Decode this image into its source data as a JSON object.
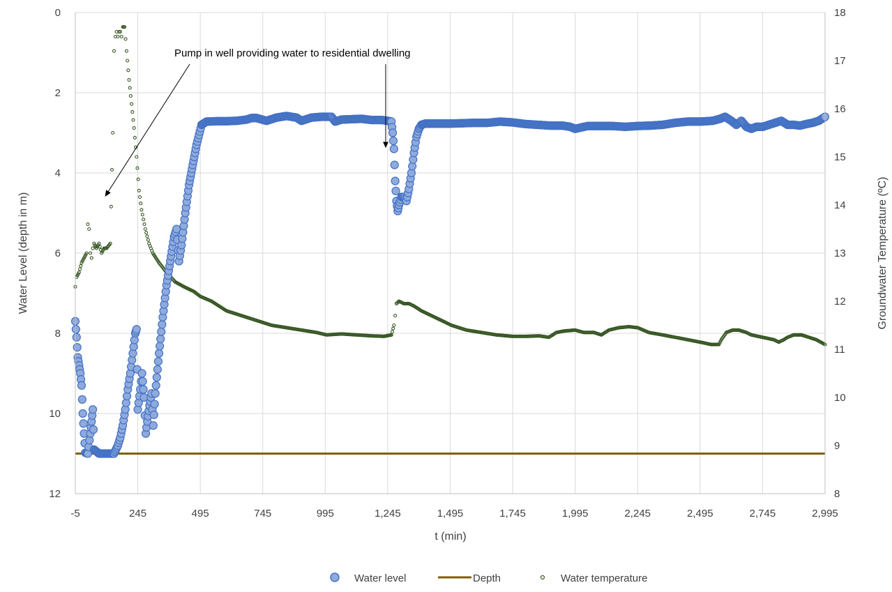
{
  "chart_data": {
    "type": "scatter",
    "xlabel": "t (min)",
    "ylabel_left": "Water Level (depth in m)",
    "ylabel_right": "Groundwater Temperature (ºC)",
    "x_range": [
      -5,
      2995
    ],
    "x_ticks": [
      -5,
      245,
      495,
      745,
      995,
      1245,
      1495,
      1745,
      1995,
      2245,
      2495,
      2745,
      2995
    ],
    "x_tick_labels": [
      "-5",
      "245",
      "495",
      "745",
      "995",
      "1,245",
      "1,495",
      "1,745",
      "1,995",
      "2,245",
      "2,495",
      "2,745",
      "2,995"
    ],
    "y_left_range": [
      0,
      12
    ],
    "y_left_inverted": true,
    "y_left_ticks": [
      0,
      2,
      4,
      6,
      8,
      10,
      12
    ],
    "y_right_range": [
      8,
      18
    ],
    "y_right_ticks": [
      8,
      9,
      10,
      11,
      12,
      13,
      14,
      15,
      16,
      17,
      18
    ],
    "grid": true,
    "legend_position": "bottom",
    "annotation": {
      "text": "Pump in well providing water to residential dwelling",
      "arrow_targets": [
        [
          255,
          14.1
        ],
        [
          1290,
          3.5
        ]
      ]
    },
    "series": [
      {
        "name": "Water level",
        "axis": "left",
        "kind": "scatter",
        "color": "#4472C4",
        "fill": "#8FAADC",
        "points": [
          [
            -5,
            7.7
          ],
          [
            0,
            8.1
          ],
          [
            5,
            8.6
          ],
          [
            10,
            8.8
          ],
          [
            15,
            9.0
          ],
          [
            20,
            9.3
          ],
          [
            25,
            10.0
          ],
          [
            30,
            10.5
          ],
          [
            35,
            10.98
          ],
          [
            45,
            11.0
          ],
          [
            55,
            10.5
          ],
          [
            60,
            10.2
          ],
          [
            65,
            9.9
          ],
          [
            70,
            10.9
          ],
          [
            90,
            11.0
          ],
          [
            110,
            11.0
          ],
          [
            130,
            11.0
          ],
          [
            150,
            11.0
          ],
          [
            165,
            10.8
          ],
          [
            175,
            10.6
          ],
          [
            185,
            10.3
          ],
          [
            195,
            9.9
          ],
          [
            205,
            9.4
          ],
          [
            215,
            9.0
          ],
          [
            225,
            8.5
          ],
          [
            235,
            8.0
          ],
          [
            240,
            7.9
          ],
          [
            245,
            9.9
          ],
          [
            255,
            9.4
          ],
          [
            262,
            9.0
          ],
          [
            270,
            9.6
          ],
          [
            277,
            10.5
          ],
          [
            283,
            10.2
          ],
          [
            292,
            9.8
          ],
          [
            300,
            9.5
          ],
          [
            307,
            10.3
          ],
          [
            315,
            9.5
          ],
          [
            330,
            8.5
          ],
          [
            345,
            7.6
          ],
          [
            360,
            6.8
          ],
          [
            375,
            6.2
          ],
          [
            390,
            5.6
          ],
          [
            400,
            5.4
          ],
          [
            410,
            6.2
          ],
          [
            420,
            5.8
          ],
          [
            435,
            5.0
          ],
          [
            450,
            4.3
          ],
          [
            465,
            3.8
          ],
          [
            480,
            3.3
          ],
          [
            490,
            3.05
          ],
          [
            500,
            2.8
          ],
          [
            520,
            2.72
          ],
          [
            560,
            2.71
          ],
          [
            600,
            2.71
          ],
          [
            640,
            2.7
          ],
          [
            680,
            2.67
          ],
          [
            700,
            2.63
          ],
          [
            720,
            2.63
          ],
          [
            760,
            2.7
          ],
          [
            800,
            2.62
          ],
          [
            840,
            2.58
          ],
          [
            880,
            2.62
          ],
          [
            900,
            2.7
          ],
          [
            940,
            2.62
          ],
          [
            980,
            2.6
          ],
          [
            1020,
            2.6
          ],
          [
            1035,
            2.72
          ],
          [
            1060,
            2.67
          ],
          [
            1100,
            2.66
          ],
          [
            1140,
            2.65
          ],
          [
            1180,
            2.68
          ],
          [
            1220,
            2.68
          ],
          [
            1245,
            2.7
          ],
          [
            1260,
            2.72
          ],
          [
            1265,
            3.0
          ],
          [
            1270,
            3.4
          ],
          [
            1275,
            4.2
          ],
          [
            1280,
            4.7
          ],
          [
            1285,
            4.95
          ],
          [
            1290,
            4.8
          ],
          [
            1300,
            4.6
          ],
          [
            1310,
            4.6
          ],
          [
            1320,
            4.7
          ],
          [
            1330,
            4.4
          ],
          [
            1340,
            4.0
          ],
          [
            1350,
            3.5
          ],
          [
            1360,
            3.1
          ],
          [
            1370,
            2.9
          ],
          [
            1380,
            2.8
          ],
          [
            1395,
            2.77
          ],
          [
            1445,
            2.77
          ],
          [
            1495,
            2.77
          ],
          [
            1545,
            2.76
          ],
          [
            1595,
            2.75
          ],
          [
            1645,
            2.75
          ],
          [
            1695,
            2.72
          ],
          [
            1745,
            2.74
          ],
          [
            1795,
            2.78
          ],
          [
            1845,
            2.8
          ],
          [
            1895,
            2.82
          ],
          [
            1945,
            2.82
          ],
          [
            1975,
            2.85
          ],
          [
            1995,
            2.9
          ],
          [
            2045,
            2.83
          ],
          [
            2095,
            2.83
          ],
          [
            2145,
            2.83
          ],
          [
            2195,
            2.85
          ],
          [
            2245,
            2.83
          ],
          [
            2295,
            2.82
          ],
          [
            2345,
            2.8
          ],
          [
            2395,
            2.75
          ],
          [
            2445,
            2.72
          ],
          [
            2495,
            2.72
          ],
          [
            2545,
            2.7
          ],
          [
            2575,
            2.65
          ],
          [
            2595,
            2.6
          ],
          [
            2620,
            2.7
          ],
          [
            2640,
            2.8
          ],
          [
            2660,
            2.7
          ],
          [
            2680,
            2.85
          ],
          [
            2700,
            2.9
          ],
          [
            2720,
            2.85
          ],
          [
            2745,
            2.85
          ],
          [
            2795,
            2.75
          ],
          [
            2820,
            2.7
          ],
          [
            2845,
            2.8
          ],
          [
            2870,
            2.8
          ],
          [
            2895,
            2.82
          ],
          [
            2920,
            2.78
          ],
          [
            2945,
            2.75
          ],
          [
            2970,
            2.7
          ],
          [
            2995,
            2.6
          ]
        ]
      },
      {
        "name": "Depth",
        "axis": "left",
        "kind": "line",
        "color": "#7F6000",
        "points": [
          [
            -5,
            11.0
          ],
          [
            2995,
            11.0
          ]
        ]
      },
      {
        "name": "Water temperature",
        "axis": "right",
        "kind": "scatter",
        "color": "#375623",
        "points": [
          [
            -5,
            12.3
          ],
          [
            0,
            12.5
          ],
          [
            10,
            12.6
          ],
          [
            20,
            12.8
          ],
          [
            30,
            12.9
          ],
          [
            40,
            13.0
          ],
          [
            45,
            13.6
          ],
          [
            50,
            13.5
          ],
          [
            55,
            13.0
          ],
          [
            60,
            12.9
          ],
          [
            65,
            13.1
          ],
          [
            70,
            13.2
          ],
          [
            80,
            13.1
          ],
          [
            90,
            13.2
          ],
          [
            100,
            13.0
          ],
          [
            110,
            13.1
          ],
          [
            120,
            13.1
          ],
          [
            135,
            13.2
          ],
          [
            145,
            15.5
          ],
          [
            150,
            17.2
          ],
          [
            155,
            17.5
          ],
          [
            160,
            17.6
          ],
          [
            165,
            17.5
          ],
          [
            170,
            17.6
          ],
          [
            175,
            17.6
          ],
          [
            180,
            17.5
          ],
          [
            185,
            17.7
          ],
          [
            192,
            17.7
          ],
          [
            200,
            17.2
          ],
          [
            210,
            16.6
          ],
          [
            220,
            16.1
          ],
          [
            230,
            15.6
          ],
          [
            240,
            15.0
          ],
          [
            250,
            14.3
          ],
          [
            260,
            13.9
          ],
          [
            275,
            13.5
          ],
          [
            290,
            13.2
          ],
          [
            305,
            13.0
          ],
          [
            330,
            12.8
          ],
          [
            360,
            12.6
          ],
          [
            395,
            12.4
          ],
          [
            430,
            12.3
          ],
          [
            470,
            12.2
          ],
          [
            495,
            12.1
          ],
          [
            540,
            12.0
          ],
          [
            600,
            11.8
          ],
          [
            660,
            11.7
          ],
          [
            720,
            11.6
          ],
          [
            780,
            11.5
          ],
          [
            840,
            11.45
          ],
          [
            900,
            11.4
          ],
          [
            960,
            11.35
          ],
          [
            1000,
            11.3
          ],
          [
            1060,
            11.32
          ],
          [
            1120,
            11.3
          ],
          [
            1180,
            11.28
          ],
          [
            1230,
            11.27
          ],
          [
            1260,
            11.3
          ],
          [
            1270,
            11.5
          ],
          [
            1275,
            11.7
          ],
          [
            1280,
            11.95
          ],
          [
            1290,
            12.0
          ],
          [
            1310,
            11.95
          ],
          [
            1330,
            11.95
          ],
          [
            1350,
            11.9
          ],
          [
            1380,
            11.8
          ],
          [
            1420,
            11.7
          ],
          [
            1460,
            11.6
          ],
          [
            1500,
            11.5
          ],
          [
            1560,
            11.4
          ],
          [
            1620,
            11.35
          ],
          [
            1680,
            11.3
          ],
          [
            1745,
            11.27
          ],
          [
            1800,
            11.27
          ],
          [
            1850,
            11.28
          ],
          [
            1890,
            11.25
          ],
          [
            1920,
            11.35
          ],
          [
            1950,
            11.38
          ],
          [
            1995,
            11.4
          ],
          [
            2030,
            11.35
          ],
          [
            2070,
            11.35
          ],
          [
            2100,
            11.3
          ],
          [
            2130,
            11.4
          ],
          [
            2170,
            11.45
          ],
          [
            2210,
            11.47
          ],
          [
            2245,
            11.45
          ],
          [
            2290,
            11.35
          ],
          [
            2345,
            11.3
          ],
          [
            2395,
            11.25
          ],
          [
            2445,
            11.2
          ],
          [
            2495,
            11.15
          ],
          [
            2540,
            11.1
          ],
          [
            2570,
            11.1
          ],
          [
            2580,
            11.2
          ],
          [
            2600,
            11.35
          ],
          [
            2625,
            11.4
          ],
          [
            2650,
            11.4
          ],
          [
            2680,
            11.35
          ],
          [
            2700,
            11.3
          ],
          [
            2745,
            11.25
          ],
          [
            2790,
            11.2
          ],
          [
            2810,
            11.15
          ],
          [
            2830,
            11.2
          ],
          [
            2845,
            11.25
          ],
          [
            2870,
            11.3
          ],
          [
            2900,
            11.3
          ],
          [
            2930,
            11.25
          ],
          [
            2960,
            11.2
          ],
          [
            2995,
            11.1
          ]
        ]
      }
    ]
  }
}
